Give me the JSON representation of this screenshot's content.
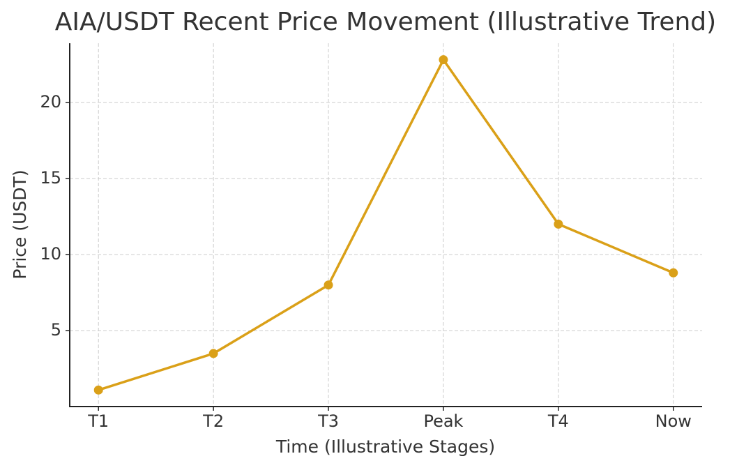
{
  "chart_data": {
    "type": "line",
    "title": "AIA/USDT Recent Price Movement (Illustrative Trend)",
    "x_label": "Time (Illustrative Stages)",
    "y_label": "Price (USDT)",
    "categories": [
      "T1",
      "T2",
      "T3",
      "Peak",
      "T4",
      "Now"
    ],
    "values": [
      1.1,
      3.5,
      8,
      22.8,
      12,
      8.8
    ],
    "color": "#daa018",
    "ylim": [
      0.015,
      23.885
    ],
    "yticks": [
      5,
      10,
      15,
      20
    ],
    "grid": true
  }
}
